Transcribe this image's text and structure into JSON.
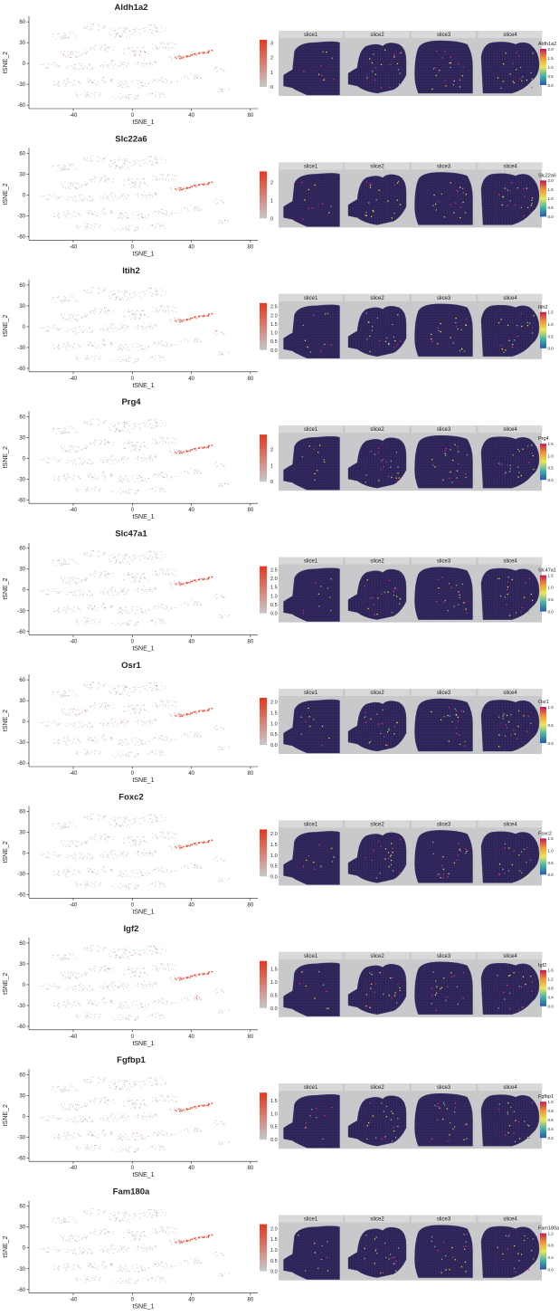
{
  "colors": {
    "tsne_base": "#b5b5b5",
    "tsne_high": "#e8361c",
    "tsne_low": "#c8c8c8",
    "panel_bg": "#c7c9ca",
    "strip_bg": "#d9d9d9",
    "tissue": "#2e2457",
    "spot_hi_1": "#f0e442",
    "spot_hi_2": "#7fc97f",
    "spot_hi_3": "#e7298a"
  },
  "chart_data": [
    {
      "type": "scatter",
      "title": "Aldh1a2",
      "xlabel": "tSNE_1",
      "ylabel": "tSNE_2",
      "xticks": [
        "-40",
        "0",
        "40",
        "80"
      ],
      "yticks": [
        "60",
        "30",
        "0",
        "-30",
        "-60"
      ],
      "xlim": [
        -70,
        85
      ],
      "ylim": [
        -65,
        68
      ],
      "legend_ticks": [
        "3",
        "2",
        "1",
        "0"
      ],
      "legend_range": [
        0,
        3.2
      ],
      "spatial": {
        "facets": [
          "slice1",
          "slice2",
          "slice3",
          "slice4"
        ],
        "legend_title": "Aldh1a2",
        "legend_ticks": [
          "2.0",
          "1.5",
          "1.0",
          "0.5",
          "0.0"
        ]
      }
    },
    {
      "type": "scatter",
      "title": "Slc22a6",
      "xlabel": "tSNE_1",
      "ylabel": "tSNE_2",
      "xticks": [
        "-40",
        "0",
        "40",
        "80"
      ],
      "yticks": [
        "60",
        "30",
        "0",
        "-30",
        "-60"
      ],
      "xlim": [
        -70,
        85
      ],
      "ylim": [
        -65,
        68
      ],
      "legend_ticks": [
        "2",
        "1",
        "0"
      ],
      "legend_range": [
        0,
        2.6
      ],
      "spatial": {
        "facets": [
          "slice1",
          "slice2",
          "slice3",
          "slice4"
        ],
        "legend_title": "Slc22a6",
        "legend_ticks": [
          "2.0",
          "1.5",
          "1.0",
          "0.5",
          "0.0"
        ]
      }
    },
    {
      "type": "scatter",
      "title": "Itih2",
      "xlabel": "tSNE_1",
      "ylabel": "tSNE_2",
      "xticks": [
        "-40",
        "0",
        "40",
        "80"
      ],
      "yticks": [
        "60",
        "30",
        "0",
        "-30",
        "-60"
      ],
      "xlim": [
        -70,
        85
      ],
      "ylim": [
        -65,
        68
      ],
      "legend_ticks": [
        "2.5",
        "2.0",
        "1.5",
        "1.0",
        "0.5",
        "0.0"
      ],
      "legend_range": [
        0,
        2.7
      ],
      "spatial": {
        "facets": [
          "slice1",
          "slice2",
          "slice3",
          "slice4"
        ],
        "legend_title": "Itih2",
        "legend_ticks": [
          "1.5",
          "1.0",
          "0.5",
          "0.0"
        ]
      }
    },
    {
      "type": "scatter",
      "title": "Prg4",
      "xlabel": "tSNE_1",
      "ylabel": "tSNE_2",
      "xticks": [
        "-40",
        "0",
        "40",
        "80"
      ],
      "yticks": [
        "60",
        "30",
        "0",
        "-30",
        "-60"
      ],
      "xlim": [
        -70,
        85
      ],
      "ylim": [
        -65,
        68
      ],
      "legend_ticks": [
        "2",
        "1",
        "0"
      ],
      "legend_range": [
        0,
        2.9
      ],
      "spatial": {
        "facets": [
          "slice1",
          "slice2",
          "slice3",
          "slice4"
        ],
        "legend_title": "Prg4",
        "legend_ticks": [
          "1.5",
          "1.0",
          "0.5",
          "0.0"
        ]
      }
    },
    {
      "type": "scatter",
      "title": "Slc47a1",
      "xlabel": "tSNE_1",
      "ylabel": "tSNE_2",
      "xticks": [
        "-40",
        "0",
        "40",
        "80"
      ],
      "yticks": [
        "60",
        "30",
        "0",
        "-30",
        "-60"
      ],
      "xlim": [
        -70,
        85
      ],
      "ylim": [
        -65,
        68
      ],
      "legend_ticks": [
        "2.5",
        "2.0",
        "1.5",
        "1.0",
        "0.5",
        "0.0"
      ],
      "legend_range": [
        0,
        2.7
      ],
      "spatial": {
        "facets": [
          "slice1",
          "slice2",
          "slice3",
          "slice4"
        ],
        "legend_title": "Slc47a1",
        "legend_ticks": [
          "1.5",
          "1.0",
          "0.5",
          "0.0"
        ]
      }
    },
    {
      "type": "scatter",
      "title": "Osr1",
      "xlabel": "tSNE_1",
      "ylabel": "tSNE_2",
      "xticks": [
        "-40",
        "0",
        "40",
        "80"
      ],
      "yticks": [
        "60",
        "30",
        "0",
        "-30",
        "-60"
      ],
      "xlim": [
        -70,
        85
      ],
      "ylim": [
        -65,
        68
      ],
      "legend_ticks": [
        "2.0",
        "1.5",
        "1.0",
        "0.5",
        "0.0"
      ],
      "legend_range": [
        0,
        2.2
      ],
      "spatial": {
        "facets": [
          "slice1",
          "slice2",
          "slice3",
          "slice4"
        ],
        "legend_title": "Osr1",
        "legend_ticks": [
          "1.0",
          "0.5",
          "0.0"
        ]
      }
    },
    {
      "type": "scatter",
      "title": "Foxc2",
      "xlabel": "tSNE_1",
      "ylabel": "tSNE_2",
      "xticks": [
        "-40",
        "0",
        "40",
        "80"
      ],
      "yticks": [
        "60",
        "30",
        "0",
        "-30",
        "-60"
      ],
      "xlim": [
        -70,
        85
      ],
      "ylim": [
        -65,
        68
      ],
      "legend_ticks": [
        "2.0",
        "1.5",
        "1.0",
        "0.5",
        "0.0"
      ],
      "legend_range": [
        0,
        2.2
      ],
      "spatial": {
        "facets": [
          "slice1",
          "slice2",
          "slice3",
          "slice4"
        ],
        "legend_title": "Foxc2",
        "legend_ticks": [
          "1.5",
          "1.0",
          "0.5",
          "0.0"
        ]
      }
    },
    {
      "type": "scatter",
      "title": "Igf2",
      "xlabel": "tSNE_1",
      "ylabel": "tSNE_2",
      "xticks": [
        "-40",
        "0",
        "40",
        "80"
      ],
      "yticks": [
        "60",
        "30",
        "0",
        "-30",
        "-60"
      ],
      "xlim": [
        -70,
        85
      ],
      "ylim": [
        -65,
        68
      ],
      "legend_ticks": [
        "1.5",
        "1.0",
        "0.5",
        "0.0"
      ],
      "legend_range": [
        0,
        1.8
      ],
      "spatial": {
        "facets": [
          "slice1",
          "slice2",
          "slice3",
          "slice4"
        ],
        "legend_title": "Igf2",
        "legend_ticks": [
          "1.6",
          "1.2",
          "0.8",
          "0.4",
          "0.0"
        ]
      }
    },
    {
      "type": "scatter",
      "title": "Fgfbp1",
      "xlabel": "tSNE_1",
      "ylabel": "tSNE_2",
      "xticks": [
        "-40",
        "0",
        "40",
        "80"
      ],
      "yticks": [
        "60",
        "30",
        "0",
        "-30",
        "-60"
      ],
      "xlim": [
        -70,
        85
      ],
      "ylim": [
        -65,
        68
      ],
      "legend_ticks": [
        "1.5",
        "1.0",
        "0.5",
        "0.0"
      ],
      "legend_range": [
        0,
        1.8
      ],
      "spatial": {
        "facets": [
          "slice1",
          "slice2",
          "slice3",
          "slice4"
        ],
        "legend_title": "Fgfbp1",
        "legend_ticks": [
          "1.0",
          "0.8",
          "0.6",
          "0.4",
          "0.2"
        ]
      }
    },
    {
      "type": "scatter",
      "title": "Fam180a",
      "xlabel": "tSNE_1",
      "ylabel": "tSNE_2",
      "xticks": [
        "-40",
        "0",
        "40",
        "80"
      ],
      "yticks": [
        "60",
        "30",
        "0",
        "-30",
        "-60"
      ],
      "xlim": [
        -70,
        85
      ],
      "ylim": [
        -65,
        68
      ],
      "legend_ticks": [
        "2.0",
        "1.5",
        "1.0",
        "0.5",
        "0.0"
      ],
      "legend_range": [
        0,
        2.2
      ],
      "spatial": {
        "facets": [
          "slice1",
          "slice2",
          "slice3",
          "slice4"
        ],
        "legend_title": "Fam180a",
        "legend_ticks": [
          "1.2",
          "0.8",
          "0.4",
          "0.0"
        ]
      }
    }
  ]
}
